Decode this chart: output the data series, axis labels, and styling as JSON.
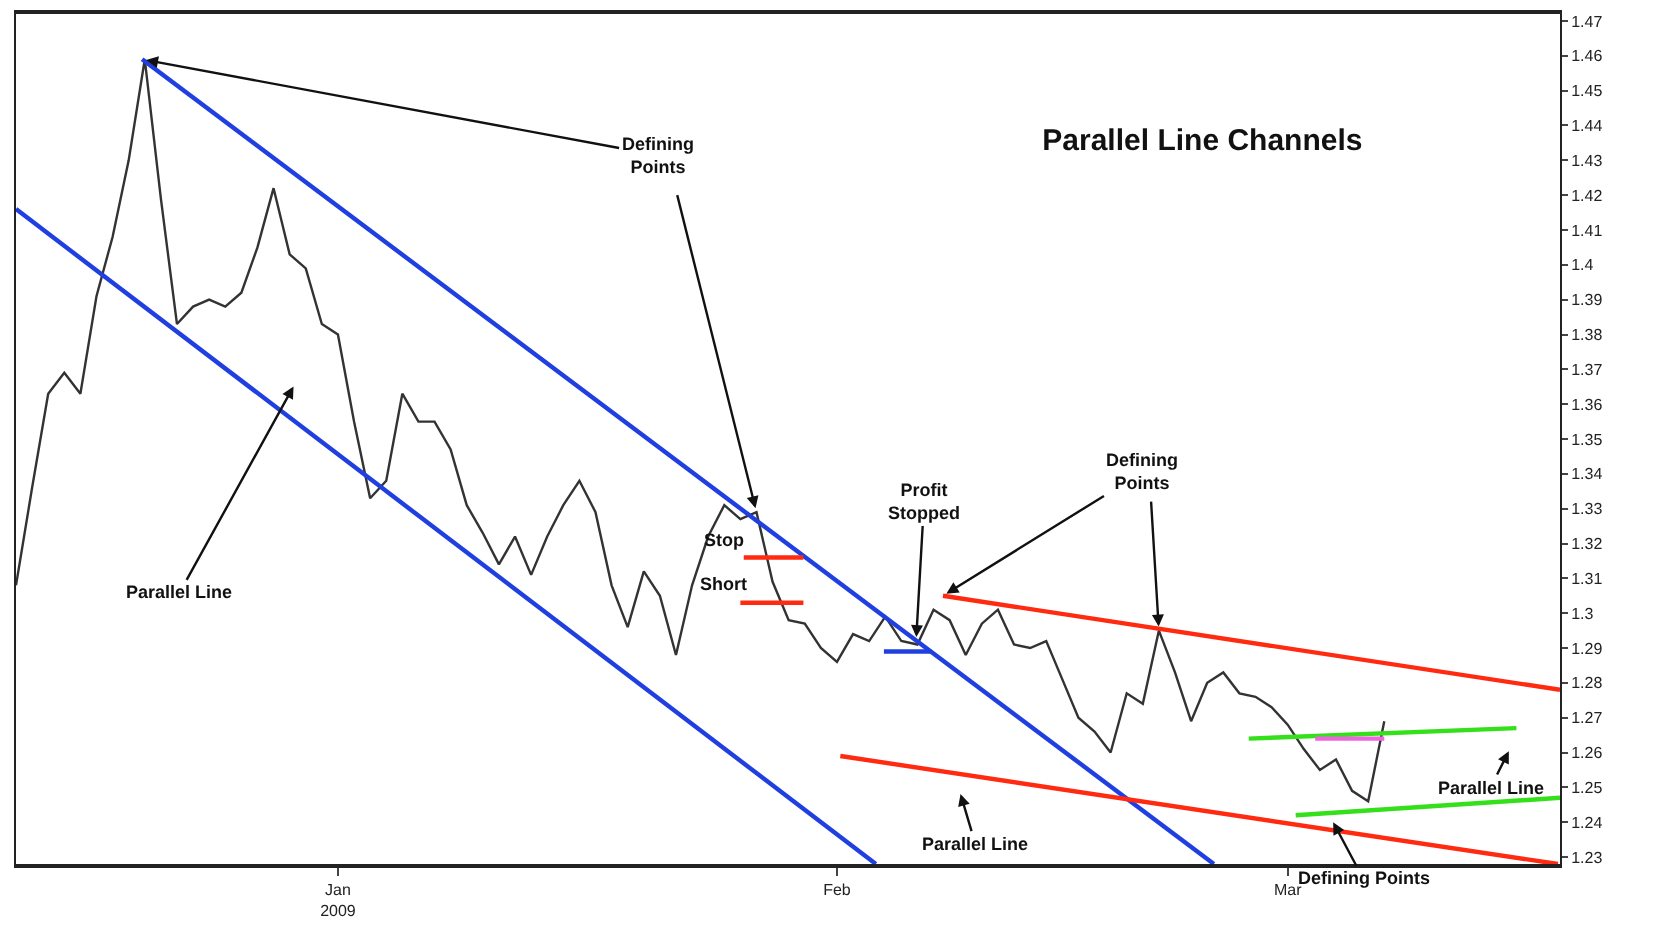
{
  "chart_data": {
    "type": "line",
    "title": "Parallel Line Channels",
    "xlim": [
      "2008-12-12",
      "2009-03-17T22:00"
    ],
    "ylim": [
      1.228,
      1.472
    ],
    "xticks": [
      {
        "value": "2009-01-01",
        "label": "Jan\n2009"
      },
      {
        "value": "2009-02-01",
        "label": "Feb"
      },
      {
        "value": "2009-03-01",
        "label": "Mar"
      }
    ],
    "yticks": [
      1.23,
      1.24,
      1.25,
      1.26,
      1.27,
      1.28,
      1.29,
      1.3,
      1.31,
      1.32,
      1.33,
      1.34,
      1.35,
      1.36,
      1.37,
      1.38,
      1.39,
      1.4,
      1.41,
      1.42,
      1.43,
      1.44,
      1.45,
      1.46,
      1.47
    ],
    "marker": "none",
    "line_style": "solid",
    "series": [
      {
        "color": "#333333",
        "x": [
          "2008-12-12",
          "2008-12-13",
          "2008-12-14",
          "2008-12-15",
          "2008-12-16",
          "2008-12-17",
          "2008-12-18",
          "2008-12-19",
          "2008-12-20",
          "2008-12-21",
          "2008-12-22",
          "2008-12-23",
          "2008-12-24",
          "2008-12-25",
          "2008-12-26",
          "2008-12-27",
          "2008-12-28",
          "2008-12-29",
          "2008-12-30",
          "2008-12-31",
          "2009-01-01",
          "2009-01-02",
          "2009-01-03",
          "2009-01-04",
          "2009-01-05",
          "2009-01-06",
          "2009-01-07",
          "2009-01-08",
          "2009-01-09",
          "2009-01-10",
          "2009-01-11",
          "2009-01-12",
          "2009-01-13",
          "2009-01-14",
          "2009-01-15",
          "2009-01-16",
          "2009-01-17",
          "2009-01-18",
          "2009-01-19",
          "2009-01-20",
          "2009-01-21",
          "2009-01-22",
          "2009-01-23",
          "2009-01-24",
          "2009-01-25",
          "2009-01-26",
          "2009-01-27",
          "2009-01-28",
          "2009-01-29",
          "2009-01-30",
          "2009-01-31",
          "2009-02-01",
          "2009-02-02",
          "2009-02-03",
          "2009-02-04",
          "2009-02-05",
          "2009-02-06",
          "2009-02-07",
          "2009-02-08",
          "2009-02-09",
          "2009-02-10",
          "2009-02-11",
          "2009-02-12",
          "2009-02-13",
          "2009-02-14",
          "2009-02-15",
          "2009-02-16",
          "2009-02-17",
          "2009-02-18",
          "2009-02-19",
          "2009-02-20",
          "2009-02-21",
          "2009-02-22",
          "2009-02-23",
          "2009-02-24",
          "2009-02-25",
          "2009-02-26",
          "2009-02-27",
          "2009-02-28",
          "2009-03-01",
          "2009-03-02",
          "2009-03-03",
          "2009-03-04",
          "2009-03-05",
          "2009-03-06",
          "2009-03-07"
        ],
        "values": [
          1.308,
          1.336,
          1.363,
          1.369,
          1.363,
          1.391,
          1.408,
          1.43,
          1.459,
          1.419,
          1.383,
          1.388,
          1.39,
          1.388,
          1.392,
          1.405,
          1.422,
          1.403,
          1.399,
          1.383,
          1.38,
          1.355,
          1.333,
          1.338,
          1.363,
          1.355,
          1.355,
          1.347,
          1.331,
          1.323,
          1.314,
          1.322,
          1.311,
          1.322,
          1.331,
          1.338,
          1.329,
          1.308,
          1.296,
          1.312,
          1.305,
          1.288,
          1.308,
          1.322,
          1.331,
          1.327,
          1.329,
          1.309,
          1.298,
          1.297,
          1.29,
          1.286,
          1.294,
          1.292,
          1.299,
          1.292,
          1.291,
          1.301,
          1.298,
          1.288,
          1.297,
          1.301,
          1.291,
          1.29,
          1.292,
          1.281,
          1.27,
          1.266,
          1.26,
          1.277,
          1.274,
          1.295,
          1.283,
          1.269,
          1.28,
          1.283,
          1.277,
          1.276,
          1.273,
          1.268,
          1.261,
          1.255,
          1.258,
          1.249,
          1.246,
          1.269
        ]
      },
      {
        "color": "#1f3fe0",
        "x": [
          "2008-12-19T20:00",
          "2009-02-24T10:00"
        ],
        "values": [
          1.459,
          1.228
        ]
      },
      {
        "color": "#1f3fe0",
        "x": [
          "2008-12-12",
          "2009-02-03T10:00"
        ],
        "values": [
          1.416,
          1.228
        ]
      },
      {
        "color": "#ff2a10",
        "x": [
          "2009-02-07T14:00",
          "2009-03-17T22:00"
        ],
        "values": [
          1.305,
          1.278
        ]
      },
      {
        "color": "#ff2a10",
        "x": [
          "2009-02-01T05:00",
          "2009-03-17T19:00"
        ],
        "values": [
          1.259,
          1.228
        ]
      },
      {
        "color": "#33e01a",
        "x": [
          "2009-02-26T14:00",
          "2009-03-15T05:00"
        ],
        "values": [
          1.264,
          1.267
        ]
      },
      {
        "color": "#33e01a",
        "x": [
          "2009-03-01T12:00",
          "2009-03-17T22:00"
        ],
        "values": [
          1.242,
          1.247
        ]
      },
      {
        "color": "#ee66dd",
        "x": [
          "2009-03-02T17:00",
          "2009-03-07"
        ],
        "values": [
          1.264,
          1.264
        ]
      },
      {
        "color": "#ff2a10",
        "x": [
          "2009-01-26T05:00",
          "2009-01-29T22:00"
        ],
        "values": [
          1.316,
          1.316
        ]
      },
      {
        "color": "#ff2a10",
        "x": [
          "2009-01-26",
          "2009-01-29T22:00"
        ],
        "values": [
          1.303,
          1.303
        ]
      },
      {
        "color": "#1f3fe0",
        "x": [
          "2009-02-03T22:00",
          "2009-02-06T19:00"
        ],
        "values": [
          1.289,
          1.289
        ]
      }
    ],
    "annotations": [
      {
        "text": "Defining\nPoints",
        "x": "2008-12-19T20:00",
        "y": 1.459
      },
      "Parallel Line",
      {
        "text": "Stop",
        "x": "2009-01-28",
        "y": 1.316
      },
      {
        "text": "Short",
        "x": "2009-01-28",
        "y": 1.303
      },
      {
        "text": "Profit\nStopped",
        "x": "2009-02-05T22:00",
        "y": 1.292
      },
      {
        "text": "Defining\nPoints",
        "x": "2009-02-07T14:00",
        "y": 1.305
      },
      "Parallel Line",
      "Parallel Line",
      {
        "text": "Defining Points",
        "x": "2009-03-03T17:00",
        "y": 1.241
      }
    ]
  }
}
